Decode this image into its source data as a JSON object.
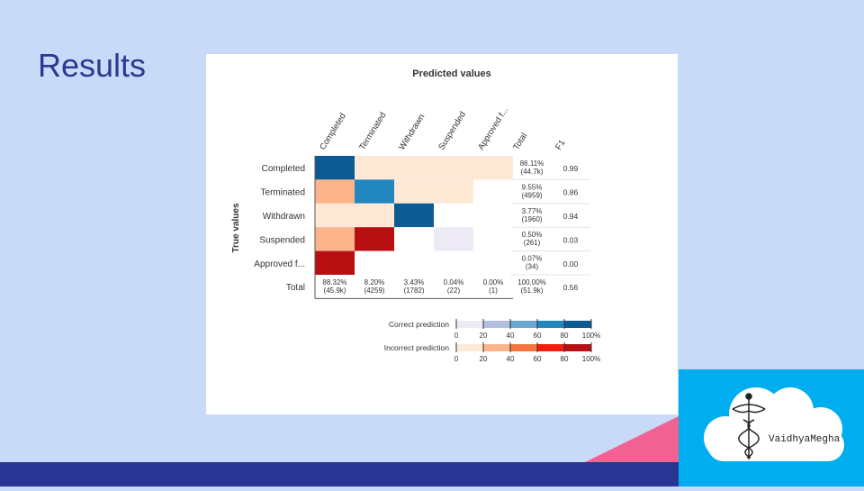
{
  "slide": {
    "title": "Results",
    "logo_text": "VaidhyaMegha",
    "colors": {
      "background": "#c9daf8",
      "title": "#2b3990",
      "bottom_bar": "#283593",
      "accent_pink": "#f06292",
      "logo_bg": "#00aeef"
    }
  },
  "chart_data": {
    "type": "heatmap",
    "title": "Predicted values",
    "xlabel": "Predicted values",
    "ylabel": "True values",
    "columns": [
      "Completed",
      "Terminated",
      "Withdrawn",
      "Suspended",
      "Approved f...",
      "Total",
      "F1"
    ],
    "rows": [
      {
        "label": "Completed",
        "cells": [
          [
            "correct",
            85
          ],
          [
            "incorrect",
            10
          ],
          [
            "incorrect",
            10
          ],
          [
            "incorrect",
            10
          ],
          [
            "incorrect",
            10
          ]
        ],
        "total_pct": "86.11%",
        "total_n": "(44.7k)",
        "f1": "0.99"
      },
      {
        "label": "Terminated",
        "cells": [
          [
            "incorrect",
            35
          ],
          [
            "correct",
            65
          ],
          [
            "incorrect",
            10
          ],
          [
            "incorrect",
            10
          ],
          [
            "none",
            0
          ]
        ],
        "total_pct": "9.55%",
        "total_n": "(4959)",
        "f1": "0.86"
      },
      {
        "label": "Withdrawn",
        "cells": [
          [
            "incorrect",
            10
          ],
          [
            "incorrect",
            10
          ],
          [
            "correct",
            88
          ],
          [
            "none",
            0
          ],
          [
            "none",
            0
          ]
        ],
        "total_pct": "3.77%",
        "total_n": "(1960)",
        "f1": "0.94"
      },
      {
        "label": "Suspended",
        "cells": [
          [
            "incorrect",
            35
          ],
          [
            "incorrect",
            85
          ],
          [
            "none",
            0
          ],
          [
            "correct",
            5
          ],
          [
            "none",
            0
          ]
        ],
        "total_pct": "0.50%",
        "total_n": "(261)",
        "f1": "0.03"
      },
      {
        "label": "Approved f...",
        "cells": [
          [
            "incorrect",
            100
          ],
          [
            "none",
            0
          ],
          [
            "none",
            0
          ],
          [
            "none",
            0
          ],
          [
            "none",
            0
          ]
        ],
        "total_pct": "0.07%",
        "total_n": "(34)",
        "f1": "0.00"
      }
    ],
    "totals_row": {
      "label": "Total",
      "pct": [
        "88.32%",
        "8.20%",
        "3.43%",
        "0.04%",
        "0.00%",
        "100.00%"
      ],
      "n": [
        "(45.9k)",
        "(4259)",
        "(1782)",
        "(22)",
        "(1)",
        "(51.9k)"
      ],
      "f1": "0.56"
    },
    "legends": [
      {
        "label": "Correct prediction",
        "scale": "correct",
        "ticks": [
          "0",
          "20",
          "40",
          "60",
          "80",
          "100%"
        ]
      },
      {
        "label": "Incorrect prediction",
        "scale": "incorrect",
        "ticks": [
          "0",
          "20",
          "40",
          "60",
          "80",
          "100%"
        ]
      }
    ],
    "colors": {
      "correct": [
        "#ede9f5",
        "#b2c0df",
        "#6aa6cf",
        "#2387bf",
        "#0c5b92"
      ],
      "incorrect": [
        "#fee8d6",
        "#fcb58a",
        "#f4753f",
        "#f21d0f",
        "#b80f13"
      ]
    }
  }
}
